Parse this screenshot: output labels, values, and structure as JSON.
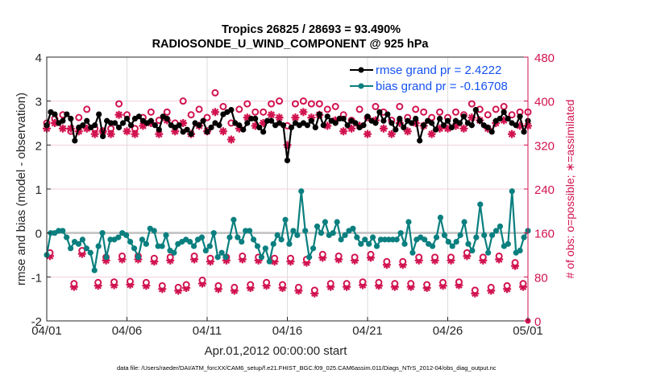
{
  "chart_data": {
    "type": "line",
    "title": "Tropics 26825 / 28693 = 93.490%",
    "subtitle": "RADIOSONDE_U_WIND_COMPONENT @ 925 hPa",
    "xlabel": "Apr.01,2012 00:00:00 start",
    "ylabel": "rmse and bias (model - observation)",
    "ylabel_right": "# of obs: o=possible; ∗=assimilated",
    "footnote": "data file: /Users/raeder/DAI/ATM_forcXX/CAM6_setup/f.e21.FHIST_BGC.f09_025.CAM6assim.011/Diags_NTrS_2012-04/obs_diag_output.nc",
    "x_tick_labels": [
      "04/01",
      "04/06",
      "04/11",
      "04/16",
      "04/21",
      "04/26",
      "05/01"
    ],
    "x_range_days": [
      0,
      30
    ],
    "y_ticks": [
      "4",
      "3",
      "2",
      "1",
      "0",
      "-1",
      "-2"
    ],
    "ylim": [
      -2,
      4
    ],
    "y_right_ticks": [
      "480",
      "400",
      "320",
      "240",
      "160",
      "80",
      "0"
    ],
    "ylim_right": [
      0,
      480
    ],
    "grid": true,
    "zero_line": 0,
    "legend_position": "top-right",
    "series": [
      {
        "name": "rmse grand pr = 2.4222",
        "color": "#000000",
        "axis": "left",
        "values": [
          2.45,
          2.75,
          2.7,
          2.5,
          2.55,
          2.7,
          2.6,
          2.1,
          2.4,
          2.45,
          2.55,
          2.4,
          2.45,
          2.7,
          2.2,
          2.55,
          2.5,
          2.5,
          2.4,
          2.5,
          2.6,
          2.45,
          2.6,
          2.65,
          2.55,
          2.5,
          2.55,
          2.45,
          2.35,
          2.65,
          2.6,
          2.45,
          2.4,
          2.45,
          2.3,
          2.35,
          2.25,
          2.5,
          2.45,
          2.55,
          2.3,
          2.4,
          2.5,
          2.45,
          2.7,
          2.75,
          2.8,
          2.5,
          2.45,
          2.35,
          2.5,
          2.6,
          2.6,
          2.4,
          2.3,
          2.55,
          2.55,
          2.45,
          2.5,
          2.45,
          1.65,
          2.4,
          2.5,
          2.45,
          2.5,
          2.45,
          2.55,
          2.4,
          2.7,
          2.45,
          2.65,
          2.55,
          2.5,
          2.6,
          2.6,
          2.45,
          2.55,
          2.5,
          2.4,
          2.45,
          2.65,
          2.55,
          2.5,
          2.75,
          2.55,
          2.7,
          2.5,
          2.35,
          2.6,
          2.4,
          2.55,
          2.5,
          2.6,
          2.1,
          2.45,
          2.55,
          2.5,
          2.35,
          2.6,
          2.45,
          2.55,
          2.4,
          2.55,
          2.5,
          2.65,
          2.5,
          2.45,
          2.8,
          2.55,
          2.45,
          2.4,
          2.3,
          2.55,
          2.6,
          2.75,
          2.6,
          2.5,
          2.45,
          2.65,
          2.3,
          2.55
        ]
      },
      {
        "name": "bias grand pr = -0.16708",
        "color": "#0b7f7f",
        "axis": "left",
        "values": [
          -0.5,
          0.0,
          0.0,
          0.05,
          0.05,
          -0.1,
          -0.35,
          -0.2,
          -0.25,
          -0.15,
          -0.35,
          -0.45,
          -0.85,
          -0.3,
          0.0,
          -0.55,
          -0.15,
          -0.15,
          -0.1,
          0.0,
          -0.05,
          -0.2,
          -0.35,
          -0.55,
          -0.15,
          -0.25,
          0.1,
          0.05,
          -0.3,
          -0.3,
          -0.05,
          -0.4,
          -0.45,
          -0.25,
          -0.2,
          -0.15,
          -0.2,
          -0.3,
          -0.15,
          -0.1,
          -0.4,
          -0.3,
          0.0,
          -0.55,
          -0.45,
          -0.55,
          -0.1,
          0.3,
          -0.1,
          -0.2,
          0.05,
          0.05,
          -0.15,
          -0.3,
          -0.55,
          -0.35,
          -0.65,
          -0.25,
          -0.05,
          -0.15,
          0.3,
          -0.25,
          0.05,
          -0.05,
          0.95,
          0.05,
          -0.55,
          -0.35,
          0.15,
          0.0,
          0.25,
          -0.05,
          0.0,
          0.25,
          -0.15,
          -0.05,
          0.05,
          0.1,
          -0.1,
          -0.25,
          -0.15,
          -0.25,
          -0.1,
          -0.3,
          -0.15,
          -0.15,
          -0.15,
          -0.15,
          -0.15,
          0.0,
          -0.25,
          0.25,
          -0.45,
          -0.15,
          -0.1,
          -0.15,
          -0.25,
          -0.3,
          -0.1,
          0.35,
          -0.05,
          -0.2,
          -0.3,
          -0.2,
          -0.05,
          0.25,
          -0.25,
          -0.4,
          -0.1,
          0.65,
          -0.05,
          -0.45,
          -0.05,
          0.05,
          0.15,
          -0.3,
          -0.25,
          0.95,
          -0.45,
          -0.4,
          -0.1,
          0.05
        ]
      }
    ],
    "obs_possible": {
      "marker": "o",
      "color": "#d1134f",
      "axis": "right",
      "values": [
        360,
        382,
        368,
        372,
        375,
        390,
        345,
        400,
        370,
        380,
        385,
        375,
        350,
        395,
        345,
        405,
        350,
        360,
        395,
        380,
        375,
        390,
        350,
        360,
        370,
        395,
        380,
        375,
        365,
        370,
        380,
        375,
        360,
        390,
        400,
        390,
        375,
        360,
        385,
        395,
        370,
        375,
        415,
        395,
        390,
        400,
        360,
        395,
        385,
        420,
        395,
        395,
        380,
        395,
        380,
        370,
        395,
        405,
        400,
        395,
        355,
        385,
        395,
        380,
        400,
        385,
        395,
        380,
        395,
        375,
        385,
        380,
        390,
        395,
        375,
        385,
        365,
        395,
        385,
        375,
        370,
        395,
        390,
        385,
        380,
        395,
        365,
        370,
        390,
        375,
        370,
        380,
        385,
        395,
        380,
        385,
        370,
        380,
        380,
        360,
        370,
        390,
        380,
        385,
        375,
        370,
        395,
        380,
        385,
        380,
        375,
        370,
        385,
        380,
        390,
        395,
        375,
        385,
        380,
        385,
        380
      ],
      "low_values": [
        130,
        125,
        120,
        130,
        120,
        130,
        115,
        120,
        125,
        130,
        120,
        115,
        125,
        125,
        130,
        120,
        125,
        110,
        120,
        125,
        120,
        125,
        115,
        120,
        130,
        120,
        125,
        120,
        115,
        130,
        120,
        125,
        120,
        115,
        120,
        125,
        125,
        120,
        125,
        130,
        125,
        120,
        115,
        120,
        125,
        120,
        130,
        125,
        120,
        125,
        120,
        120,
        125,
        115,
        120,
        125,
        120,
        125,
        130,
        120,
        125,
        120,
        130,
        125,
        115,
        120,
        125,
        120,
        125,
        130
      ]
    },
    "obs_assimilated": {
      "marker": "*",
      "color": "#d1134f",
      "axis": "right",
      "values": [
        350,
        355,
        360,
        340,
        350,
        370,
        350,
        330,
        345,
        360,
        350,
        335,
        340,
        355,
        345,
        370,
        340,
        335,
        375,
        350,
        345,
        365,
        340,
        325,
        355,
        370,
        360,
        345,
        340,
        360,
        365,
        335,
        345,
        355,
        360,
        375,
        340,
        350,
        355,
        370,
        345,
        350,
        380,
        370,
        345,
        355,
        330,
        365,
        350,
        385,
        370,
        365,
        355,
        370,
        360,
        345,
        375,
        380,
        370,
        365,
        320,
        360,
        370,
        355,
        380,
        365,
        370,
        350,
        375,
        340,
        355,
        350,
        365,
        375,
        345,
        360,
        350,
        370,
        355,
        345,
        340,
        370,
        365,
        355,
        350,
        370,
        340,
        345,
        360,
        350,
        345,
        355,
        360,
        370,
        355,
        365,
        340,
        355,
        350,
        335,
        350,
        365,
        355,
        360,
        350,
        345,
        370,
        355,
        365,
        355,
        350,
        340,
        360,
        355,
        365,
        375,
        340,
        360,
        355,
        360,
        355
      ]
    }
  },
  "obs_low_markers": [
    {
      "day": 0.2,
      "v": 118
    },
    {
      "day": 1.7,
      "v": 62
    },
    {
      "day": 2.2,
      "v": 122
    },
    {
      "day": 3.2,
      "v": 64
    },
    {
      "day": 3.7,
      "v": 110
    },
    {
      "day": 4.2,
      "v": 65
    },
    {
      "day": 4.7,
      "v": 112
    },
    {
      "day": 5.2,
      "v": 66
    },
    {
      "day": 5.7,
      "v": 112
    },
    {
      "day": 6.2,
      "v": 64
    },
    {
      "day": 6.7,
      "v": 108
    },
    {
      "day": 7.2,
      "v": 58
    },
    {
      "day": 7.7,
      "v": 110
    },
    {
      "day": 8.2,
      "v": 55
    },
    {
      "day": 8.7,
      "v": 60
    },
    {
      "day": 9.2,
      "v": 112
    },
    {
      "day": 9.7,
      "v": 68
    },
    {
      "day": 10.2,
      "v": 108
    },
    {
      "day": 10.7,
      "v": 58
    },
    {
      "day": 11.2,
      "v": 110
    },
    {
      "day": 11.7,
      "v": 55
    },
    {
      "day": 12.2,
      "v": 112
    },
    {
      "day": 12.7,
      "v": 60
    },
    {
      "day": 13.2,
      "v": 110
    },
    {
      "day": 13.7,
      "v": 64
    },
    {
      "day": 14.2,
      "v": 108
    },
    {
      "day": 14.7,
      "v": 60
    },
    {
      "day": 15.2,
      "v": 108
    },
    {
      "day": 15.7,
      "v": 55
    },
    {
      "day": 16.2,
      "v": 106
    },
    {
      "day": 16.7,
      "v": 50
    },
    {
      "day": 17.2,
      "v": 115
    },
    {
      "day": 17.7,
      "v": 62
    },
    {
      "day": 18.2,
      "v": 112
    },
    {
      "day": 18.7,
      "v": 62
    },
    {
      "day": 19.2,
      "v": 110
    },
    {
      "day": 19.7,
      "v": 65
    },
    {
      "day": 20.2,
      "v": 115
    },
    {
      "day": 20.7,
      "v": 64
    },
    {
      "day": 21.2,
      "v": 102
    },
    {
      "day": 21.7,
      "v": 62
    },
    {
      "day": 22.2,
      "v": 102
    },
    {
      "day": 22.7,
      "v": 62
    },
    {
      "day": 23.2,
      "v": 110
    },
    {
      "day": 23.7,
      "v": 60
    },
    {
      "day": 24.2,
      "v": 110
    },
    {
      "day": 24.7,
      "v": 64
    },
    {
      "day": 25.2,
      "v": 110
    },
    {
      "day": 25.7,
      "v": 65
    },
    {
      "day": 26.2,
      "v": 118
    },
    {
      "day": 26.7,
      "v": 50
    },
    {
      "day": 27.2,
      "v": 110
    },
    {
      "day": 27.7,
      "v": 55
    },
    {
      "day": 28.2,
      "v": 112
    },
    {
      "day": 28.7,
      "v": 58
    },
    {
      "day": 29.2,
      "v": 100
    },
    {
      "day": 29.7,
      "v": 62
    }
  ]
}
